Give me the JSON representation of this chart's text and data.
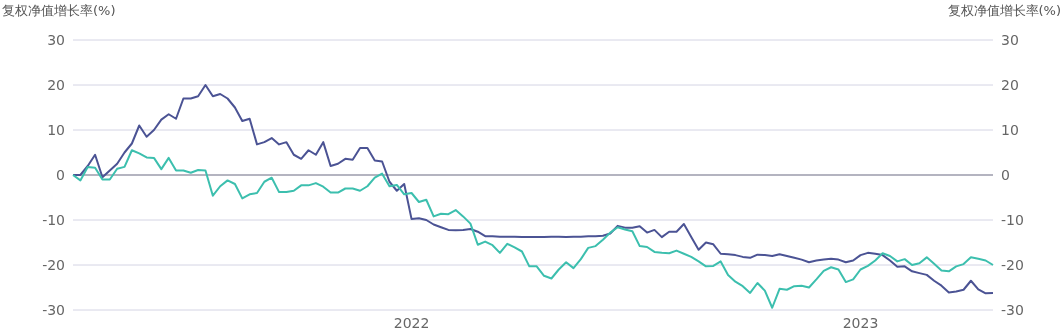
{
  "chart_data": {
    "type": "line",
    "ylabel": "复权净值增长率(%)",
    "y2label": "复权净值增长率(%)",
    "categories": [
      null,
      null,
      null,
      null,
      null,
      null,
      null,
      null,
      null,
      null,
      null,
      null,
      null,
      null,
      null,
      null,
      null,
      null,
      null,
      null,
      null,
      null,
      null,
      null,
      null,
      null,
      null,
      null,
      null,
      null,
      null,
      null,
      null,
      null,
      null,
      null,
      null,
      null,
      null,
      null,
      null,
      null,
      null,
      null,
      null,
      null,
      "2022",
      null,
      null,
      null,
      null,
      null,
      null,
      null,
      null,
      null,
      null,
      null,
      null,
      null,
      null,
      null,
      null,
      null,
      null,
      null,
      null,
      null,
      null,
      null,
      null,
      null,
      null,
      null,
      null,
      null,
      null,
      null,
      null,
      null,
      null,
      null,
      null,
      null,
      null,
      null,
      null,
      null,
      null,
      null,
      null,
      null,
      null,
      null,
      null,
      null,
      null,
      null,
      null,
      null,
      null,
      null,
      null,
      null,
      null,
      null,
      null,
      "2023",
      null,
      null,
      null,
      null,
      null,
      null,
      null,
      null,
      null,
      null,
      null,
      null,
      null,
      null,
      null,
      null,
      null,
      null
    ],
    "series": [
      {
        "color": "#4b5394",
        "values": [
          0,
          0,
          2,
          4.5,
          -0.5,
          1,
          2.5,
          5,
          7,
          11,
          8.5,
          10,
          12.3,
          13.5,
          12.5,
          17,
          17,
          17.5,
          20,
          17.5,
          18,
          17,
          15,
          12,
          12.5,
          6.8,
          7.3,
          8.2,
          6.8,
          7.3,
          4.5,
          3.6,
          5.5,
          4.5,
          7.3,
          2,
          2.5,
          3.6,
          3.4,
          6,
          6,
          3.2,
          3,
          -1.5,
          -3.5,
          -2,
          -9.8,
          -9.6,
          -10,
          -11,
          -11.6,
          -12.2,
          -12.3,
          -12.2,
          -12,
          -12.6,
          -13.6,
          -13.6,
          -13.7,
          -13.7,
          -13.7,
          -13.8,
          -13.8,
          -13.8,
          -13.8,
          -13.7,
          -13.7,
          -13.8,
          -13.7,
          -13.7,
          -13.6,
          -13.6,
          -13.5,
          -13,
          -11.3,
          -11.7,
          -11.7,
          -11.4,
          -12.8,
          -12.2,
          -13.8,
          -12.6,
          -12.6,
          -10.9,
          -13.8,
          -16.6,
          -15,
          -15.4,
          -17.5,
          -17.6,
          -17.8,
          -18.2,
          -18.4,
          -17.7,
          -17.8,
          -18,
          -17.6,
          -18,
          -18.4,
          -18.8,
          -19.4,
          -19,
          -18.8,
          -18.6,
          -18.8,
          -19.4,
          -19,
          -17.8,
          -17.3,
          -17.5,
          -17.8,
          -19,
          -20.4,
          -20.3,
          -21.4,
          -21.8,
          -22.2,
          -23.5,
          -24.6,
          -26.1,
          -25.9,
          -25.5,
          -23.5,
          -25.4,
          -26.3,
          -26.2
        ]
      },
      {
        "color": "#3cbfae",
        "values": [
          0,
          -1.2,
          1.8,
          1.6,
          -1,
          -1,
          1.4,
          1.8,
          5.5,
          4.8,
          3.9,
          3.8,
          1.3,
          3.8,
          1,
          1,
          0.5,
          1.1,
          1,
          -4.6,
          -2.5,
          -1.2,
          -2,
          -5.2,
          -4.3,
          -4,
          -1.5,
          -0.6,
          -3.8,
          -3.8,
          -3.5,
          -2.3,
          -2.3,
          -1.8,
          -2.6,
          -3.9,
          -3.9,
          -3,
          -3,
          -3.5,
          -2.5,
          -0.6,
          0.3,
          -2.5,
          -2.2,
          -4.3,
          -4,
          -6,
          -5.5,
          -9.2,
          -8.6,
          -8.7,
          -7.8,
          -9.2,
          -10.8,
          -15.5,
          -14.8,
          -15.6,
          -17.3,
          -15.3,
          -16.1,
          -17,
          -20.3,
          -20.3,
          -22.4,
          -23,
          -21,
          -19.4,
          -20.7,
          -18.7,
          -16.2,
          -15.8,
          -14.4,
          -12.8,
          -11.6,
          -12.1,
          -12.5,
          -15.8,
          -16,
          -17.1,
          -17.3,
          -17.4,
          -16.8,
          -17.5,
          -18.2,
          -19.2,
          -20.3,
          -20.2,
          -19.2,
          -22.2,
          -23.7,
          -24.7,
          -26.2,
          -24,
          -25.7,
          -29.5,
          -25.3,
          -25.5,
          -24.7,
          -24.6,
          -25,
          -23.2,
          -21.3,
          -20.5,
          -21,
          -23.8,
          -23.2,
          -21,
          -20.2,
          -19,
          -17.4,
          -18,
          -19.2,
          -18.7,
          -20,
          -19.6,
          -18.3,
          -19.7,
          -21.2,
          -21.4,
          -20.3,
          -19.8,
          -18.3,
          -18.6,
          -19,
          -20
        ]
      }
    ],
    "ylim": [
      -30,
      30
    ],
    "yticks": [
      -30,
      -20,
      -10,
      0,
      10,
      20,
      30
    ],
    "y2lim": [
      -30,
      30
    ],
    "y2ticks": [
      -30,
      -20,
      -10,
      0,
      10,
      20,
      30
    ],
    "grid": "y",
    "marker": "none",
    "line_style": "solid",
    "ref_lines": [
      {
        "axis": "y",
        "value": 0,
        "color": "#b4b4c0"
      }
    ]
  }
}
